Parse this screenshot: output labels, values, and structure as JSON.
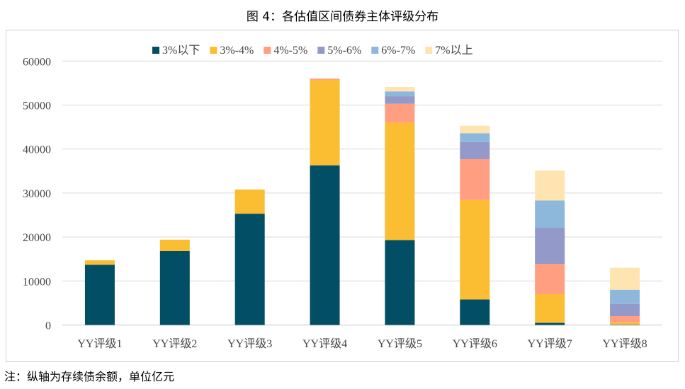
{
  "title": "图 4：各估值区间债券主体评级分布",
  "note": "注：纵轴为存续债余额，单位亿元",
  "chart_data": {
    "type": "bar",
    "stacked": true,
    "title": "图 4：各估值区间债券主体评级分布",
    "xlabel": "",
    "ylabel": "",
    "ylim": [
      0,
      60000
    ],
    "yticks": [
      0,
      10000,
      20000,
      30000,
      40000,
      50000,
      60000
    ],
    "grid": true,
    "legend_position": "top",
    "categories": [
      "YY评级1",
      "YY评级2",
      "YY评级3",
      "YY评级4",
      "YY评级5",
      "YY评级6",
      "YY评级7",
      "YY评级8"
    ],
    "series": [
      {
        "name": "3%以下",
        "color": "#024E64",
        "values": [
          13700,
          16800,
          25300,
          36300,
          19300,
          5800,
          500,
          100
        ]
      },
      {
        "name": "3%-4%",
        "color": "#FBBE33",
        "values": [
          1000,
          2600,
          5500,
          19400,
          26700,
          22600,
          6500,
          500
        ]
      },
      {
        "name": "4%-5%",
        "color": "#FF9E80",
        "values": [
          0,
          0,
          0,
          300,
          4300,
          9300,
          6900,
          1400
        ]
      },
      {
        "name": "5%-6%",
        "color": "#939AC9",
        "values": [
          0,
          0,
          0,
          0,
          1700,
          3900,
          8200,
          2800
        ]
      },
      {
        "name": "6%-7%",
        "color": "#8DB8DC",
        "values": [
          0,
          0,
          0,
          0,
          1100,
          2000,
          6200,
          3200
        ]
      },
      {
        "name": "7%以上",
        "color": "#FDE4B0",
        "values": [
          0,
          0,
          0,
          0,
          1000,
          1700,
          6800,
          5000
        ]
      }
    ]
  }
}
